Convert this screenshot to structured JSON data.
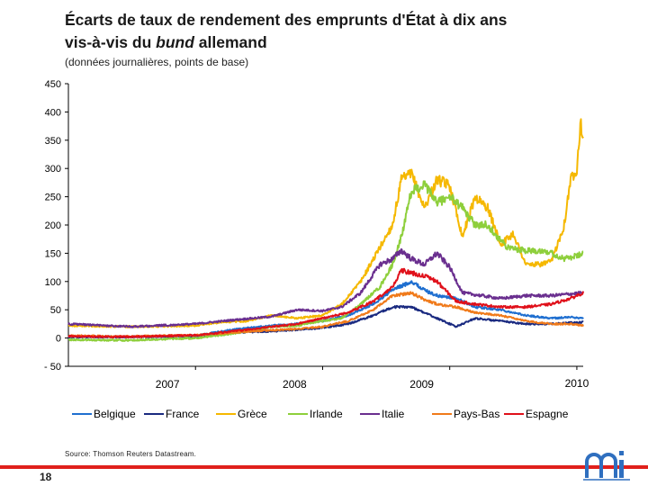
{
  "header": {
    "title_line1": "Écarts de taux de rendement des emprunts d'État à dix ans",
    "title_line2_prefix": "vis-à-vis du ",
    "title_line2_em": "bund",
    "title_line2_suffix": " allemand",
    "subtitle": "(données journalières, points de base)"
  },
  "footer": {
    "source": "Source: Thomson Reuters Datastream.",
    "page_number": "18"
  },
  "colors": {
    "Belgique": "#1f6fd0",
    "France": "#1a2a80",
    "Grèce": "#f5b800",
    "Irlande": "#8ecf3c",
    "Italie": "#6a2f8f",
    "Pays-Bas": "#f07a1a",
    "Espagne": "#e0101a",
    "footer_bar": "#e0201b"
  },
  "chart_data": {
    "type": "line",
    "title": "Écarts de taux de rendement des emprunts d'État à dix ans vis-à-vis du bund allemand",
    "ylabel": "points de base",
    "xlabel": "",
    "ylim": [
      -50,
      450
    ],
    "yticks": [
      450,
      400,
      350,
      300,
      250,
      200,
      150,
      100,
      50,
      0,
      -50
    ],
    "ytick_labels": [
      "450",
      "400",
      "350",
      "300",
      "250",
      "200",
      "150",
      "100",
      "50",
      "0",
      "- 50"
    ],
    "xlim": [
      2006.0,
      2010.05
    ],
    "year_labels": [
      {
        "label": "2007",
        "x": 2006.78
      },
      {
        "label": "2008",
        "x": 2007.78
      },
      {
        "label": "2009",
        "x": 2008.78
      },
      {
        "label": "2010",
        "x": 2010.0
      }
    ],
    "grid": false,
    "legend_position": "bottom",
    "series": [
      {
        "name": "Belgique",
        "x": [
          2006.0,
          2006.5,
          2007.0,
          2007.3,
          2007.6,
          2007.8,
          2008.0,
          2008.2,
          2008.4,
          2008.55,
          2008.7,
          2008.8,
          2008.9,
          2009.05,
          2009.2,
          2009.4,
          2009.6,
          2009.8,
          2009.95,
          2010.05
        ],
        "values": [
          2,
          2,
          4,
          15,
          22,
          25,
          30,
          40,
          60,
          85,
          100,
          85,
          75,
          70,
          55,
          50,
          40,
          35,
          37,
          35
        ]
      },
      {
        "name": "France",
        "x": [
          2006.0,
          2006.5,
          2007.0,
          2007.3,
          2007.6,
          2007.8,
          2008.0,
          2008.2,
          2008.4,
          2008.55,
          2008.7,
          2008.8,
          2008.9,
          2009.05,
          2009.2,
          2009.4,
          2009.6,
          2009.8,
          2009.95,
          2010.05
        ],
        "values": [
          2,
          2,
          4,
          10,
          12,
          15,
          18,
          25,
          40,
          55,
          55,
          45,
          35,
          20,
          35,
          30,
          25,
          25,
          27,
          28
        ]
      },
      {
        "name": "Grèce",
        "x": [
          2006.0,
          2006.5,
          2007.0,
          2007.2,
          2007.4,
          2007.6,
          2007.8,
          2008.0,
          2008.15,
          2008.3,
          2008.45,
          2008.55,
          2008.62,
          2008.7,
          2008.8,
          2008.9,
          2009.0,
          2009.1,
          2009.2,
          2009.3,
          2009.4,
          2009.5,
          2009.6,
          2009.7,
          2009.8,
          2009.9,
          2009.95,
          2010.0,
          2010.03,
          2010.05
        ],
        "values": [
          22,
          20,
          22,
          28,
          30,
          40,
          35,
          40,
          60,
          100,
          160,
          200,
          280,
          290,
          230,
          280,
          270,
          180,
          250,
          230,
          165,
          185,
          130,
          130,
          135,
          200,
          280,
          300,
          385,
          345
        ]
      },
      {
        "name": "Irlande",
        "x": [
          2006.0,
          2006.5,
          2007.0,
          2007.3,
          2007.6,
          2007.8,
          2008.0,
          2008.15,
          2008.3,
          2008.45,
          2008.55,
          2008.62,
          2008.7,
          2008.8,
          2008.9,
          2009.0,
          2009.1,
          2009.2,
          2009.3,
          2009.45,
          2009.6,
          2009.75,
          2009.9,
          2010.0,
          2010.05
        ],
        "values": [
          -3,
          -4,
          0,
          8,
          20,
          22,
          30,
          35,
          60,
          90,
          130,
          180,
          260,
          270,
          240,
          250,
          230,
          200,
          200,
          160,
          155,
          155,
          140,
          145,
          150
        ]
      },
      {
        "name": "Italie",
        "x": [
          2006.0,
          2006.5,
          2007.0,
          2007.3,
          2007.6,
          2007.8,
          2008.0,
          2008.15,
          2008.3,
          2008.45,
          2008.55,
          2008.62,
          2008.7,
          2008.8,
          2008.9,
          2009.0,
          2009.1,
          2009.25,
          2009.4,
          2009.6,
          2009.8,
          2009.95,
          2010.05
        ],
        "values": [
          25,
          20,
          25,
          32,
          38,
          50,
          48,
          55,
          80,
          130,
          140,
          155,
          140,
          130,
          150,
          125,
          80,
          75,
          70,
          75,
          75,
          78,
          80
        ]
      },
      {
        "name": "Pays-Bas",
        "x": [
          2006.0,
          2006.5,
          2007.0,
          2007.3,
          2007.6,
          2007.8,
          2008.0,
          2008.2,
          2008.4,
          2008.55,
          2008.7,
          2008.8,
          2008.9,
          2009.05,
          2009.2,
          2009.4,
          2009.6,
          2009.8,
          2009.95,
          2010.05
        ],
        "values": [
          4,
          3,
          5,
          10,
          14,
          16,
          20,
          30,
          50,
          75,
          80,
          68,
          60,
          55,
          45,
          40,
          30,
          25,
          25,
          22
        ]
      },
      {
        "name": "Espagne",
        "x": [
          2006.0,
          2006.5,
          2007.0,
          2007.3,
          2007.6,
          2007.8,
          2008.0,
          2008.2,
          2008.4,
          2008.55,
          2008.62,
          2008.7,
          2008.8,
          2008.9,
          2009.05,
          2009.2,
          2009.4,
          2009.6,
          2009.8,
          2009.95,
          2010.05
        ],
        "values": [
          3,
          2,
          5,
          12,
          20,
          25,
          35,
          45,
          65,
          90,
          120,
          115,
          110,
          100,
          65,
          60,
          55,
          55,
          60,
          70,
          80
        ]
      }
    ]
  }
}
